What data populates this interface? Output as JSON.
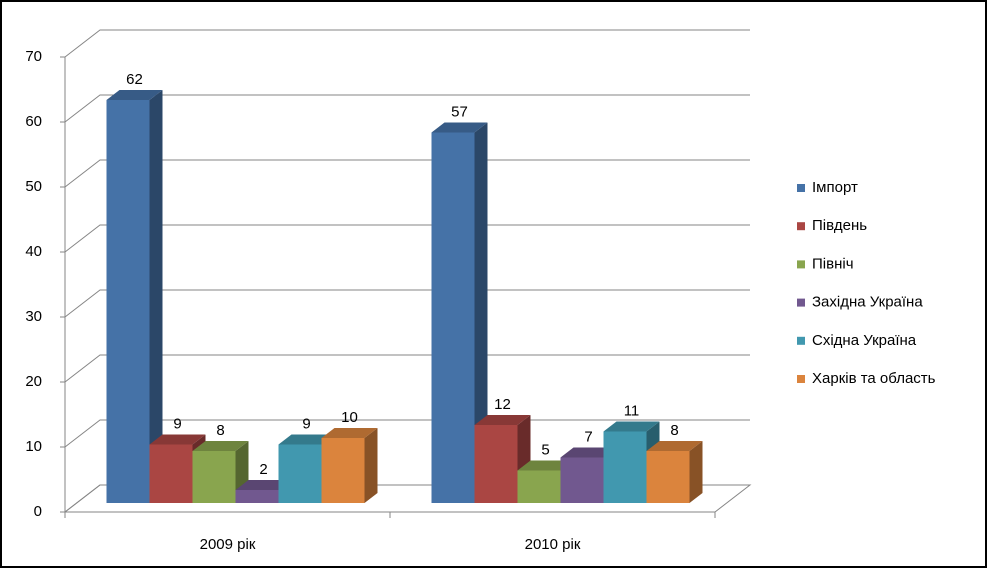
{
  "chart_data": {
    "type": "bar3d",
    "categories": [
      "2009 рік",
      "2010 рік"
    ],
    "series": [
      {
        "name": "Імпорт",
        "color": "#4572a7",
        "values": [
          62,
          57
        ]
      },
      {
        "name": "Південь",
        "color": "#aa4643",
        "values": [
          9,
          12
        ]
      },
      {
        "name": "Північ",
        "color": "#89a54e",
        "values": [
          8,
          5
        ]
      },
      {
        "name": "Західна Україна",
        "color": "#71588f",
        "values": [
          2,
          7
        ]
      },
      {
        "name": "Східна Україна",
        "color": "#4198af",
        "values": [
          9,
          11
        ]
      },
      {
        "name": "Харків та область",
        "color": "#db843d",
        "values": [
          10,
          8
        ]
      }
    ],
    "ylim": [
      0,
      70
    ],
    "yticks": [
      0,
      10,
      20,
      30,
      40,
      50,
      60,
      70
    ],
    "grid": true,
    "legend": "right"
  }
}
